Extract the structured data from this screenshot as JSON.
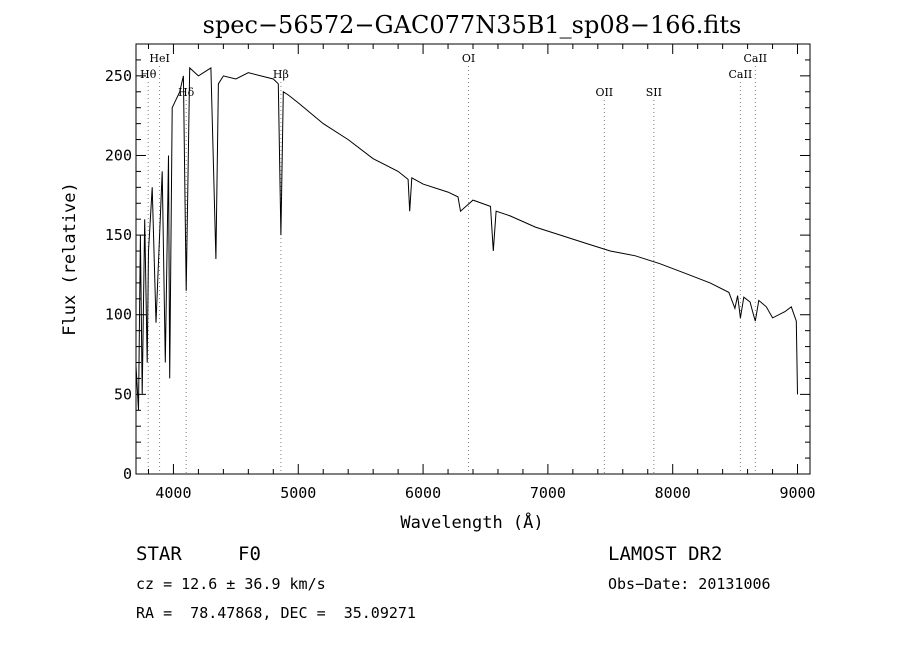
{
  "chart_data": {
    "type": "line",
    "title": "spec−56572−GAC077N35B1_sp08−166.fits",
    "xlabel": "Wavelength (Å)",
    "ylabel": "Flux (relative)",
    "xlim": [
      3700,
      9100
    ],
    "ylim": [
      0,
      270
    ],
    "x_ticks": [
      4000,
      5000,
      6000,
      7000,
      8000,
      9000
    ],
    "y_ticks": [
      0,
      50,
      100,
      150,
      200,
      250
    ],
    "grid": false,
    "legend": "none",
    "colors": {
      "line": "#000000",
      "marker_line": "#808080"
    },
    "series": [
      {
        "x": [
          3700,
          3720,
          3735,
          3750,
          3770,
          3790,
          3800,
          3830,
          3860,
          3889,
          3910,
          3935,
          3960,
          3970,
          3990,
          4050,
          4080,
          4102,
          4130,
          4200,
          4300,
          4340,
          4360,
          4400,
          4500,
          4600,
          4700,
          4800,
          4840,
          4861,
          4880,
          4920,
          5000,
          5200,
          5400,
          5600,
          5800,
          5880,
          5893,
          5910,
          6000,
          6200,
          6280,
          6300,
          6400,
          6540,
          6563,
          6585,
          6700,
          6900,
          7100,
          7300,
          7500,
          7700,
          7900,
          8100,
          8300,
          8450,
          8498,
          8520,
          8542,
          8570,
          8620,
          8640,
          8662,
          8690,
          8750,
          8800,
          8900,
          8950,
          8990,
          9000
        ],
        "y": [
          68,
          40,
          150,
          50,
          160,
          70,
          140,
          180,
          95,
          150,
          190,
          70,
          200,
          60,
          230,
          240,
          250,
          115,
          255,
          250,
          255,
          135,
          245,
          250,
          248,
          252,
          250,
          248,
          245,
          150,
          240,
          238,
          233,
          220,
          210,
          198,
          190,
          185,
          165,
          186,
          182,
          177,
          174,
          165,
          172,
          168,
          140,
          165,
          162,
          155,
          150,
          145,
          140,
          137,
          132,
          126,
          120,
          114,
          104,
          112,
          98,
          111,
          108,
          102,
          96,
          109,
          105,
          98,
          102,
          105,
          96,
          50
        ]
      }
    ],
    "line_markers": [
      {
        "label": "Hθ",
        "x": 3798,
        "row": 2
      },
      {
        "label": "HeI",
        "x": 3889,
        "row": 1
      },
      {
        "label": "Hδ",
        "x": 4102,
        "row": 3
      },
      {
        "label": "Hβ",
        "x": 4861,
        "row": 2
      },
      {
        "label": "OI",
        "x": 6364,
        "row": 1
      },
      {
        "label": "OII",
        "x": 7452,
        "row": 3
      },
      {
        "label": "SII",
        "x": 7849,
        "row": 3
      },
      {
        "label": "CaII",
        "x": 8542,
        "row": 2
      },
      {
        "label": "CaII",
        "x": 8662,
        "row": 1
      }
    ]
  },
  "info": {
    "object_class": "STAR",
    "subclass": "F0",
    "survey": "LAMOST DR2",
    "cz": "cz = 12.6 ± 36.9 km/s",
    "obs_date": "Obs−Date: 20131006",
    "coords": "RA =  78.47868, DEC =  35.09271"
  }
}
